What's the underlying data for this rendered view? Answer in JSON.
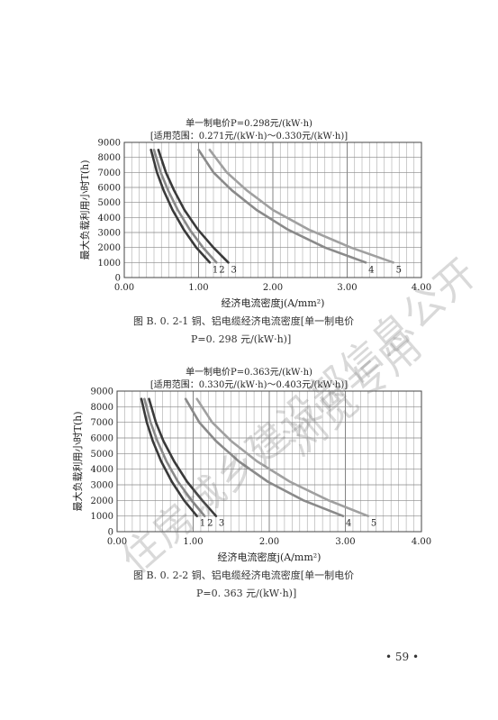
{
  "page_number": "• 59 •",
  "watermark_lines": [
    "住房城乡建设部信息公开",
    "浏览专用"
  ],
  "figures": [
    {
      "title_line1": "单一制电价P=0.298元/(kW·h)",
      "title_line2": "[适用范围：0.271元/(kW·h)～0.330元/(kW·h)]",
      "caption_line1": "图 B. 0. 2-1   铜、铝电缆经济电流密度[单一制电价",
      "caption_line2": "P=0. 298 元/(kW·h)]"
    },
    {
      "title_line1": "单一制电价P=0.363元/(kW·h)",
      "title_line2": "[适用范围：0.330元/(kW·h)～0.403元/(kW·h)]",
      "caption_line1": "图 B. 0. 2-2   铜、铝电缆经济电流密度[单一制电价",
      "caption_line2": "P=0. 363 元/(kW·h)]"
    }
  ],
  "chart_data": [
    {
      "type": "line",
      "title": "单一制电价P=0.298元/(kW·h)",
      "subtitle": "[适用范围：0.271元/(kW·h)～0.330元/(kW·h)]",
      "xlabel": "经济电流密度j(A/mm²)",
      "ylabel": "最大负载利用小时T(h)",
      "xlim": [
        0,
        4.0
      ],
      "ylim": [
        0,
        9000
      ],
      "xticks": [
        "0.00",
        "1.00",
        "2.00",
        "3.00",
        "4.00"
      ],
      "yticks": [
        "0",
        "1000",
        "2000",
        "3000",
        "4000",
        "5000",
        "6000",
        "7000",
        "8000",
        "9000"
      ],
      "grid": true,
      "series": [
        {
          "name": "1",
          "color": "#3a3a3a",
          "x": [
            0.36,
            0.44,
            0.53,
            0.65,
            0.8,
            0.97,
            1.15
          ],
          "y": [
            8500,
            7000,
            5800,
            4500,
            3200,
            2000,
            1000
          ]
        },
        {
          "name": "2",
          "color": "#8a8a8a",
          "x": [
            0.4,
            0.49,
            0.59,
            0.72,
            0.88,
            1.06,
            1.24
          ],
          "y": [
            8500,
            7000,
            5800,
            4500,
            3200,
            2000,
            1000
          ]
        },
        {
          "name": "3",
          "color": "#3a3a3a",
          "x": [
            0.46,
            0.56,
            0.67,
            0.81,
            0.99,
            1.2,
            1.4
          ],
          "y": [
            8500,
            7000,
            5800,
            4500,
            3200,
            2000,
            1000
          ]
        },
        {
          "name": "4",
          "color": "#8a8a8a",
          "x": [
            1.0,
            1.2,
            1.45,
            1.78,
            2.2,
            2.7,
            3.25
          ],
          "y": [
            8500,
            7000,
            5800,
            4500,
            3200,
            2000,
            1000
          ]
        },
        {
          "name": "5",
          "color": "#a0a0a0",
          "x": [
            1.15,
            1.38,
            1.65,
            2.0,
            2.48,
            3.05,
            3.62
          ],
          "y": [
            8500,
            7000,
            5800,
            4500,
            3200,
            2000,
            1000
          ]
        }
      ]
    },
    {
      "type": "line",
      "title": "单一制电价P=0.363元/(kW·h)",
      "subtitle": "[适用范围：0.330元/(kW·h)～0.403元/(kW·h)]",
      "xlabel": "经济电流密度j(A/mm²)",
      "ylabel": "最大负载利用小时T(h)",
      "xlim": [
        0,
        4.0
      ],
      "ylim": [
        0,
        9000
      ],
      "xticks": [
        "0.00",
        "1.00",
        "2.00",
        "3.00",
        "4.00"
      ],
      "yticks": [
        "0",
        "1000",
        "2000",
        "3000",
        "4000",
        "5000",
        "6000",
        "7000",
        "8000",
        "9000"
      ],
      "grid": true,
      "series": [
        {
          "name": "1",
          "color": "#3a3a3a",
          "x": [
            0.32,
            0.39,
            0.47,
            0.58,
            0.72,
            0.88,
            1.05
          ],
          "y": [
            8500,
            7000,
            5800,
            4500,
            3200,
            2000,
            1000
          ]
        },
        {
          "name": "2",
          "color": "#8a8a8a",
          "x": [
            0.36,
            0.44,
            0.53,
            0.65,
            0.8,
            0.98,
            1.15
          ],
          "y": [
            8500,
            7000,
            5800,
            4500,
            3200,
            2000,
            1000
          ]
        },
        {
          "name": "3",
          "color": "#3a3a3a",
          "x": [
            0.42,
            0.51,
            0.61,
            0.75,
            0.92,
            1.12,
            1.3
          ],
          "y": [
            8500,
            7000,
            5800,
            4500,
            3200,
            2000,
            1000
          ]
        },
        {
          "name": "4",
          "color": "#8a8a8a",
          "x": [
            0.9,
            1.08,
            1.3,
            1.6,
            1.98,
            2.45,
            2.97
          ],
          "y": [
            8500,
            7000,
            5800,
            4500,
            3200,
            2000,
            1000
          ]
        },
        {
          "name": "5",
          "color": "#a0a0a0",
          "x": [
            1.05,
            1.25,
            1.5,
            1.84,
            2.27,
            2.78,
            3.3
          ],
          "y": [
            8500,
            7000,
            5800,
            4500,
            3200,
            2000,
            1000
          ]
        }
      ]
    }
  ]
}
